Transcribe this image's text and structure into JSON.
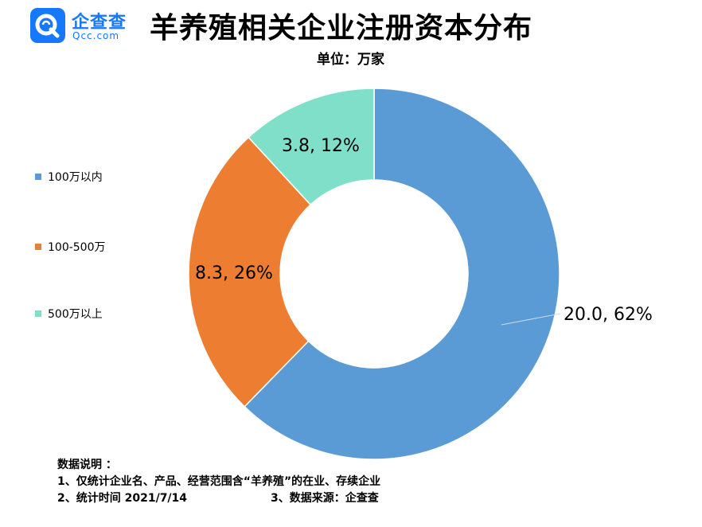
{
  "brand": {
    "name_cn": "企查查",
    "name_en": "Qcc.com"
  },
  "header": {
    "title": "羊养殖相关企业注册资本分布",
    "unit": "单位：万家"
  },
  "colors": {
    "brand": "#1677ff",
    "blue": "#5b9bd5",
    "orange": "#ed7d31",
    "teal": "#7fdfc8"
  },
  "chart_data": {
    "type": "donut",
    "title": "羊养殖相关企业注册资本分布",
    "unit": "单位：万家",
    "legend_position": "left",
    "categories": [
      "100万以内",
      "100-500万",
      "500万以上"
    ],
    "values": [
      20.0,
      8.3,
      3.8
    ],
    "percentages": [
      62,
      26,
      12
    ],
    "data_labels": [
      "20.0, 62%",
      "8.3, 26%",
      "3.8, 12%"
    ],
    "colors": [
      "#5b9bd5",
      "#ed7d31",
      "#7fdfc8"
    ]
  },
  "notes": {
    "heading": "数据说明 ：",
    "line1": "1、仅统计企业名、产品、经营范围含“羊养殖”的在业、存续企业",
    "line2a": "2、统计时间  2021/7/14",
    "line2b": "3、数据来源：企查查"
  }
}
